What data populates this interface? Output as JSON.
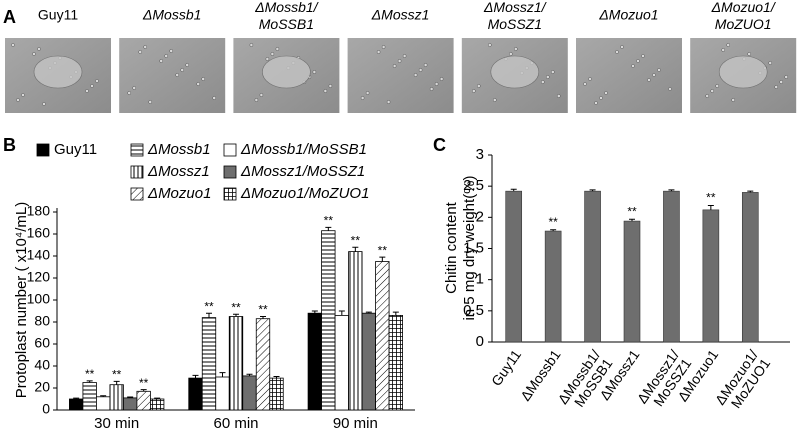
{
  "panel_a": {
    "label": "A",
    "images": [
      "Guy11",
      "ΔMossb1",
      "ΔMossb1/MoSSB1",
      "ΔMossz1",
      "ΔMossz1/MoSSZ1",
      "ΔMozuo1",
      "ΔMozuo1/MoZUO1"
    ]
  },
  "chart_data": [
    {
      "type": "grouped_bar",
      "panel_label": "B",
      "ylabel": "Protoplast number ( x10⁴/mL)",
      "categories": [
        "30 min",
        "60 min",
        "90 min"
      ],
      "ylim": [
        0,
        180
      ],
      "yticks": [
        0,
        20,
        40,
        60,
        80,
        100,
        120,
        140,
        160,
        180
      ],
      "series": [
        {
          "name": "Guy11",
          "color": "#000000",
          "values": [
            10,
            29,
            88
          ],
          "errors": [
            0.8,
            2.5,
            2
          ]
        },
        {
          "name": "ΔMossb1",
          "color": "#ffffff",
          "pattern": "horizontal",
          "values": [
            25,
            84,
            163
          ],
          "errors": [
            1.5,
            4,
            3
          ],
          "significance": [
            "**",
            "**",
            "**"
          ]
        },
        {
          "name": "ΔMossb1/MoSSB1",
          "color": "#ffffff",
          "values": [
            12,
            30,
            86
          ],
          "errors": [
            1,
            4,
            4
          ]
        },
        {
          "name": "ΔMossz1",
          "color": "#ffffff",
          "pattern": "vertical",
          "values": [
            23,
            85,
            144
          ],
          "errors": [
            3,
            2,
            4
          ],
          "significance": [
            "**",
            "**",
            "**"
          ]
        },
        {
          "name": "ΔMossz1/MoSSZ1",
          "color": "#6e6e6e",
          "values": [
            11,
            31,
            88
          ],
          "errors": [
            0.8,
            1.5,
            1
          ]
        },
        {
          "name": "ΔMozuo1",
          "color": "#ffffff",
          "pattern": "diagonal",
          "values": [
            17,
            83,
            135
          ],
          "errors": [
            1.5,
            2,
            4
          ],
          "significance": [
            "**",
            "**",
            "**"
          ]
        },
        {
          "name": "ΔMozuo1/MoZUO1",
          "color": "#ffffff",
          "pattern": "grid",
          "values": [
            10,
            29,
            86
          ],
          "errors": [
            0.8,
            1.5,
            3
          ]
        }
      ]
    },
    {
      "type": "bar",
      "panel_label": "C",
      "ylabel": [
        "Chitin content",
        "in 5 mg dry weight(%)"
      ],
      "categories": [
        "Guy11",
        "ΔMossb1",
        "ΔMossb1/MoSSB1",
        "ΔMossz1",
        "ΔMossz1/MoSSZ1",
        "ΔMozuo1",
        "ΔMozuo1/MoZUO1"
      ],
      "values": [
        2.42,
        1.78,
        2.42,
        1.94,
        2.42,
        2.12,
        2.4
      ],
      "errors": [
        0.03,
        0.02,
        0.02,
        0.03,
        0.02,
        0.07,
        0.02
      ],
      "significance": [
        null,
        "**",
        null,
        "**",
        null,
        "**",
        null
      ],
      "color": "#6e6e6e",
      "ylim": [
        0,
        3
      ],
      "yticks": [
        0,
        0.5,
        1,
        1.5,
        2,
        2.5,
        3
      ]
    }
  ]
}
